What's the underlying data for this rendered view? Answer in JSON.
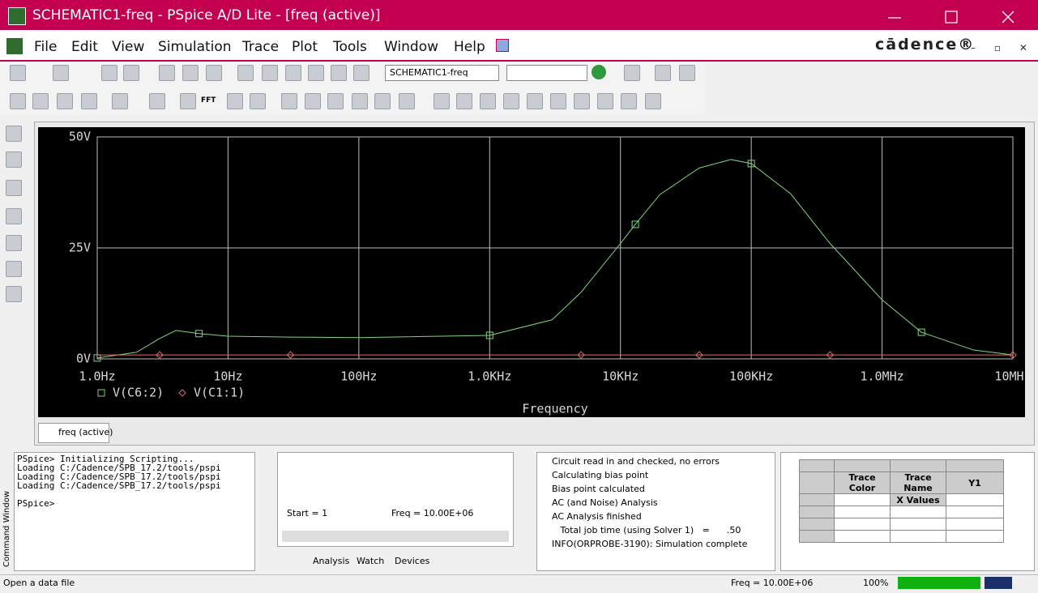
{
  "window": {
    "title": "SCHEMATIC1-freq - PSpice A/D Lite - [freq (active)]",
    "logo": "cādence®"
  },
  "menus": [
    "File",
    "Edit",
    "View",
    "Simulation",
    "Trace",
    "Plot",
    "Tools",
    "Window",
    "Help"
  ],
  "toolbar": {
    "profile": "SCHEMATIC1-freq",
    "fft": "FFT"
  },
  "chart_data": {
    "type": "line",
    "xlabel": "Frequency",
    "xscale": "log",
    "grid": true,
    "background": "#000000",
    "x": [
      1,
      2,
      3,
      4,
      6,
      10,
      30,
      100,
      1000,
      3000,
      5000,
      10000,
      13000,
      20000,
      40000,
      70000,
      100000,
      200000,
      400000,
      1000000,
      2000000,
      5000000,
      10000000
    ],
    "xlim": [
      1,
      10000000
    ],
    "xticks": [
      {
        "value": 1,
        "label": "1.0Hz"
      },
      {
        "value": 10,
        "label": "10Hz"
      },
      {
        "value": 100,
        "label": "100Hz"
      },
      {
        "value": 1000,
        "label": "1.0KHz"
      },
      {
        "value": 10000,
        "label": "10KHz"
      },
      {
        "value": 100000,
        "label": "100KHz"
      },
      {
        "value": 1000000,
        "label": "1.0MHz"
      },
      {
        "value": 10000000,
        "label": "10MHz"
      }
    ],
    "ylim": [
      0,
      50
    ],
    "yticks": [
      {
        "value": 0,
        "label": "0V"
      },
      {
        "value": 25,
        "label": "25V"
      },
      {
        "value": 50,
        "label": "50V"
      }
    ],
    "series": [
      {
        "name": "V(C6:2)",
        "color": "#7dd67d",
        "marker": "square",
        "values": [
          0.2,
          1.5,
          4.6,
          6.4,
          5.7,
          5.1,
          4.9,
          4.8,
          5.3,
          8.8,
          15,
          26,
          30.3,
          37,
          43,
          44.9,
          44,
          37.2,
          26,
          13.3,
          6,
          2,
          0.9
        ]
      },
      {
        "name": "V(C1:1)",
        "color": "#d9706a",
        "marker": "diamond",
        "values": [
          0.9,
          0.9,
          0.9,
          0.9,
          0.9,
          0.9,
          0.9,
          0.9,
          0.9,
          0.9,
          0.9,
          0.9,
          0.9,
          0.9,
          0.9,
          0.9,
          0.9,
          0.9,
          0.9,
          0.9,
          0.9,
          0.9,
          0.9
        ]
      }
    ]
  },
  "tab": "freq (active)",
  "command_window": {
    "label": "Command Window",
    "lines": [
      "PSpice> Initializing Scripting...",
      "Loading C:/Cadence/SPB_17.2/tools/pspi",
      "Loading C:/Cadence/SPB_17.2/tools/pspi",
      "Loading C:/Cadence/SPB_17.2/tools/pspi",
      "",
      "PSpice>"
    ]
  },
  "simulation": {
    "start": "Start = 1",
    "freq": "Freq = 10.00E+06",
    "tabs": [
      "Analysis",
      "Watch",
      "Devices"
    ]
  },
  "output": {
    "lines": [
      "Circuit read in and checked, no errors",
      "Calculating bias point",
      "Bias point calculated",
      "AC (and Noise) Analysis",
      "AC Analysis finished",
      "   Total job time (using Solver 1)   =      .50",
      "INFO(ORPROBE-3190): Simulation complete"
    ]
  },
  "trace_table": {
    "headers": [
      "Trace Color",
      "Trace Name",
      "Y1"
    ],
    "x_values": "X Values"
  },
  "status": {
    "message": "Open a data file",
    "freq": "Freq = 10.00E+06",
    "zoom": "100%"
  }
}
